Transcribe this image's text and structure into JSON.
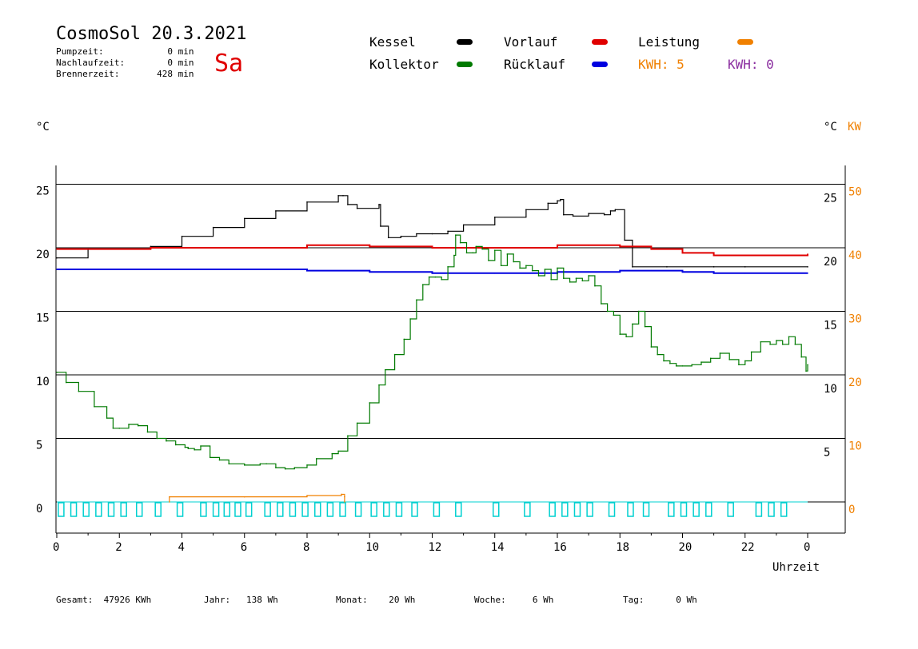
{
  "header": {
    "title": "CosmoSol 20.3.2021",
    "weekday": "Sa",
    "stats": [
      {
        "label": "Pumpzeit:",
        "value": "0",
        "unit": "min"
      },
      {
        "label": "Nachlaufzeit:",
        "value": "0",
        "unit": "min"
      },
      {
        "label": "Brennerzeit:",
        "value": "428",
        "unit": "min"
      }
    ]
  },
  "legend": {
    "kessel": "Kessel",
    "kollektor": "Kollektor",
    "vorlauf": "Vorlauf",
    "ruecklauf": "Rücklauf",
    "leistung": "Leistung",
    "kwh_orange": "KWH: 5",
    "kwh_purple": "KWH: 0"
  },
  "colors": {
    "kessel": "#000000",
    "kollektor": "#007a00",
    "vorlauf": "#e00000",
    "ruecklauf": "#0000e0",
    "leistung": "#f08000",
    "kwh_purple": "#8b2ea0",
    "pump": "#00d0d0"
  },
  "axes": {
    "left_unit": "°C",
    "right_unit_c": "°C",
    "right_unit_kw": "KW",
    "xlabel": "Uhrzeit"
  },
  "footer": [
    {
      "label": "Gesamt:",
      "value": "47926 KWh"
    },
    {
      "label": "Jahr:",
      "value": "138 Wh"
    },
    {
      "label": "Monat:",
      "value": "20 Wh"
    },
    {
      "label": "Woche:",
      "value": "6 Wh"
    },
    {
      "label": "Tag:",
      "value": "0 Wh"
    }
  ],
  "chart_data": {
    "type": "line",
    "xlabel": "Uhrzeit",
    "ylabel": "°C",
    "xlim": [
      0,
      24
    ],
    "ylim": [
      -2,
      26.5
    ],
    "x_tick_labels": [
      "0",
      "2",
      "4",
      "6",
      "8",
      "10",
      "12",
      "14",
      "16",
      "18",
      "20",
      "22",
      "0"
    ],
    "y_left_ticks": [
      0,
      5,
      10,
      15,
      20,
      25
    ],
    "y_right_c_ticks": [
      5,
      10,
      15,
      20,
      25
    ],
    "y_right_kw_ticks": [
      0,
      10,
      20,
      30,
      40,
      50
    ],
    "grid": true,
    "series": [
      {
        "name": "Kessel",
        "color": "#000000",
        "x": [
          0,
          1.0,
          3.0,
          4.0,
          5.0,
          6.0,
          7.0,
          8.0,
          9.0,
          9.15,
          9.3,
          9.6,
          10.3,
          10.35,
          10.6,
          11.0,
          11.5,
          12.0,
          12.5,
          13.0,
          14.0,
          15.0,
          15.7,
          16.0,
          16.1,
          16.2,
          16.5,
          17.0,
          17.5,
          17.7,
          17.85,
          18.15,
          18.4,
          19.5,
          21.0,
          22.0,
          24.0
        ],
        "y": [
          19.2,
          19.9,
          20.1,
          20.9,
          21.6,
          22.3,
          22.9,
          23.6,
          24.1,
          24.1,
          23.4,
          23.1,
          23.4,
          21.7,
          20.8,
          20.9,
          21.1,
          21.1,
          21.3,
          21.8,
          22.4,
          23.0,
          23.5,
          23.7,
          23.8,
          22.6,
          22.5,
          22.7,
          22.6,
          22.9,
          23.0,
          20.6,
          18.5,
          18.5,
          18.5,
          18.5,
          18.5
        ]
      },
      {
        "name": "Vorlauf",
        "color": "#e00000",
        "x": [
          0,
          3,
          6,
          8,
          9,
          10,
          12,
          14,
          16,
          17,
          18,
          19,
          20,
          21,
          22,
          24
        ],
        "y": [
          19.9,
          20.0,
          20.0,
          20.2,
          20.2,
          20.1,
          20.0,
          20.0,
          20.2,
          20.2,
          20.1,
          19.9,
          19.6,
          19.4,
          19.4,
          19.5
        ]
      },
      {
        "name": "Rücklauf",
        "color": "#0000e0",
        "x": [
          0,
          4,
          8,
          10,
          12,
          14,
          16,
          17,
          18,
          19,
          20,
          21,
          22,
          24
        ],
        "y": [
          18.3,
          18.3,
          18.2,
          18.1,
          18.0,
          18.0,
          18.1,
          18.1,
          18.2,
          18.2,
          18.1,
          18.0,
          18.0,
          18.0
        ]
      },
      {
        "name": "Kollektor",
        "color": "#007a00",
        "x": [
          0,
          0.3,
          0.7,
          1.2,
          1.6,
          1.8,
          2.0,
          2.3,
          2.6,
          2.9,
          3.2,
          3.5,
          3.8,
          4.1,
          4.2,
          4.4,
          4.6,
          4.9,
          5.2,
          5.5,
          6.0,
          6.5,
          6.7,
          7.0,
          7.3,
          7.6,
          8.0,
          8.3,
          8.8,
          9.0,
          9.3,
          9.6,
          10.0,
          10.3,
          10.5,
          10.8,
          11.1,
          11.3,
          11.5,
          11.7,
          11.9,
          12.1,
          12.3,
          12.5,
          12.7,
          12.75,
          12.9,
          13.1,
          13.3,
          13.4,
          13.6,
          13.8,
          14.0,
          14.2,
          14.4,
          14.6,
          14.8,
          15.0,
          15.2,
          15.4,
          15.6,
          15.8,
          16.0,
          16.2,
          16.4,
          16.6,
          16.8,
          17.0,
          17.2,
          17.4,
          17.6,
          17.8,
          18.0,
          18.2,
          18.4,
          18.6,
          18.8,
          19.0,
          19.2,
          19.4,
          19.6,
          19.8,
          20.0,
          20.3,
          20.6,
          20.9,
          21.2,
          21.5,
          21.8,
          22.0,
          22.2,
          22.5,
          22.8,
          23.0,
          23.2,
          23.4,
          23.6,
          23.8,
          23.95,
          24.0
        ],
        "y": [
          10.2,
          9.4,
          8.7,
          7.5,
          6.6,
          5.8,
          5.8,
          6.1,
          6.0,
          5.5,
          5.0,
          4.8,
          4.5,
          4.3,
          4.2,
          4.1,
          4.4,
          3.5,
          3.3,
          3.0,
          2.9,
          3.0,
          3.0,
          2.7,
          2.6,
          2.7,
          2.9,
          3.4,
          3.8,
          4.0,
          5.2,
          6.2,
          7.8,
          9.2,
          10.4,
          11.6,
          12.8,
          14.4,
          15.9,
          17.1,
          17.7,
          17.7,
          17.5,
          18.5,
          19.4,
          21.0,
          20.4,
          19.6,
          19.6,
          20.1,
          19.9,
          19.0,
          19.8,
          18.6,
          19.5,
          18.9,
          18.4,
          18.6,
          18.2,
          17.8,
          18.3,
          17.5,
          18.4,
          17.6,
          17.3,
          17.6,
          17.4,
          17.8,
          17.0,
          15.6,
          15.0,
          14.7,
          13.2,
          13.0,
          14.0,
          15.0,
          13.8,
          12.2,
          11.6,
          11.1,
          10.9,
          10.7,
          10.7,
          10.8,
          11.0,
          11.3,
          11.7,
          11.2,
          10.8,
          11.1,
          11.8,
          12.6,
          12.4,
          12.7,
          12.4,
          13.0,
          12.4,
          11.4,
          10.3,
          10.8
        ]
      },
      {
        "name": "Leistung",
        "color": "#f08000",
        "x": [
          3.6,
          3.6,
          6.0,
          8.0,
          9.1,
          9.2,
          9.2
        ],
        "y": [
          0,
          0.4,
          0.4,
          0.5,
          0.6,
          0.4,
          0
        ]
      }
    ],
    "pump_markers_x": [
      0.1,
      0.5,
      0.9,
      1.3,
      1.7,
      2.1,
      2.6,
      3.2,
      3.9,
      4.65,
      5.05,
      5.4,
      5.75,
      6.1,
      6.7,
      7.1,
      7.5,
      7.9,
      8.3,
      8.7,
      9.1,
      9.6,
      10.1,
      10.5,
      10.9,
      11.4,
      12.1,
      12.8,
      14.0,
      15.0,
      15.8,
      16.2,
      16.6,
      17.0,
      17.7,
      18.3,
      18.8,
      19.6,
      20.0,
      20.4,
      20.8,
      21.5,
      22.4,
      22.8,
      23.2
    ]
  }
}
